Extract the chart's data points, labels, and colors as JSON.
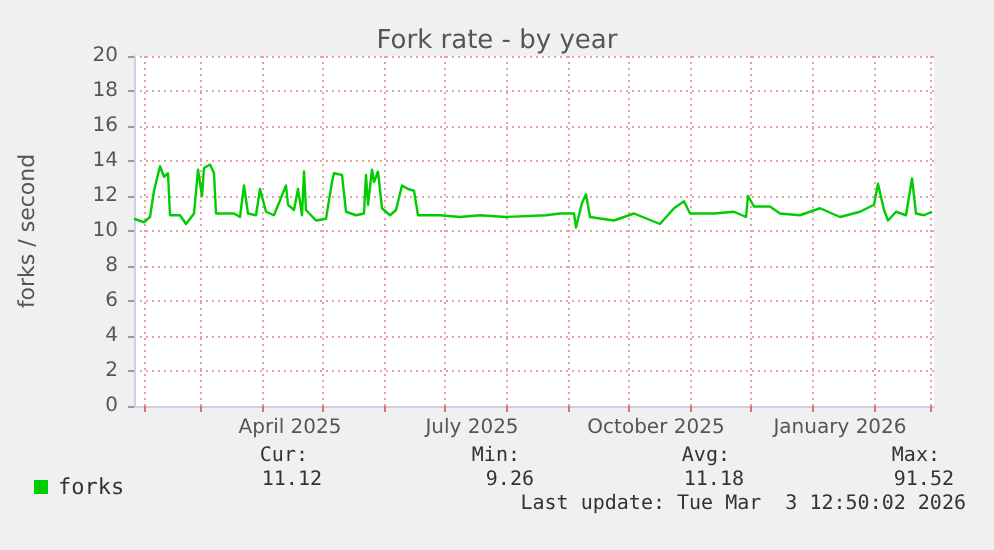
{
  "chart_data": {
    "type": "line",
    "title": "Fork rate - by year",
    "ylabel": "forks / second",
    "x": [
      "2025-01-27",
      "2025-02-01",
      "2025-02-04",
      "2025-02-06",
      "2025-02-09",
      "2025-02-11",
      "2025-02-13",
      "2025-02-14",
      "2025-02-19",
      "2025-02-22",
      "2025-02-26",
      "2025-02-28",
      "2025-03-02",
      "2025-03-03",
      "2025-03-06",
      "2025-03-08",
      "2025-03-09",
      "2025-03-18",
      "2025-03-21",
      "2025-03-23",
      "2025-03-25",
      "2025-03-29",
      "2025-03-31",
      "2025-04-03",
      "2025-04-07",
      "2025-04-13",
      "2025-04-14",
      "2025-04-17",
      "2025-04-19",
      "2025-04-21",
      "2025-04-22",
      "2025-04-23",
      "2025-04-28",
      "2025-05-03",
      "2025-05-06",
      "2025-05-07",
      "2025-05-11",
      "2025-05-13",
      "2025-05-18",
      "2025-05-22",
      "2025-05-23",
      "2025-05-24",
      "2025-05-26",
      "2025-05-27",
      "2025-05-29",
      "2025-05-31",
      "2025-06-04",
      "2025-06-07",
      "2025-06-10",
      "2025-06-13",
      "2025-06-16",
      "2025-06-18",
      "2025-06-29",
      "2025-07-09",
      "2025-07-19",
      "2025-08-01",
      "2025-08-21",
      "2025-08-28",
      "2025-09-04",
      "2025-09-05",
      "2025-09-08",
      "2025-09-10",
      "2025-09-12",
      "2025-09-24",
      "2025-10-04",
      "2025-10-17",
      "2025-10-24",
      "2025-10-29",
      "2025-11-01",
      "2025-11-13",
      "2025-11-23",
      "2025-11-29",
      "2025-11-30",
      "2025-12-03",
      "2025-12-11",
      "2025-12-16",
      "2025-12-26",
      "2026-01-05",
      "2026-01-15",
      "2026-01-25",
      "2026-02-01",
      "2026-02-03",
      "2026-02-06",
      "2026-02-08",
      "2026-02-12",
      "2026-02-17",
      "2026-02-20",
      "2026-02-22",
      "2026-02-26",
      "2026-03-02"
    ],
    "series": [
      {
        "name": "forks",
        "color": "#00cc00",
        "values": [
          10.7,
          10.5,
          10.8,
          12.3,
          13.7,
          13.1,
          13.3,
          10.9,
          10.9,
          10.4,
          11,
          13.5,
          12,
          13.6,
          13.8,
          13.3,
          11,
          11,
          10.8,
          12.6,
          11,
          10.9,
          12.4,
          11.1,
          10.9,
          12.6,
          11.5,
          11.2,
          12.4,
          10.9,
          13.4,
          11.2,
          10.6,
          10.7,
          12.8,
          13.3,
          13.2,
          11.1,
          10.9,
          11,
          13.2,
          11.5,
          13.5,
          12.8,
          13.4,
          11.3,
          10.9,
          11.2,
          12.6,
          12.4,
          12.3,
          10.9,
          10.9,
          10.8,
          10.9,
          10.8,
          10.9,
          11,
          11,
          10.2,
          11.6,
          12.1,
          10.8,
          10.6,
          11,
          10.4,
          11.3,
          11.7,
          11,
          11,
          11.1,
          10.8,
          12,
          11.4,
          11.4,
          11,
          10.9,
          11.3,
          10.8,
          11.1,
          11.5,
          12.7,
          11.2,
          10.6,
          11.1,
          10.9,
          13,
          11,
          10.9,
          11.1
        ]
      }
    ],
    "xlim": [
      "2025-01-27",
      "2026-03-03"
    ],
    "xticks": [
      {
        "value": "2025-02-01",
        "label": null
      },
      {
        "value": "2025-03-01",
        "label": null
      },
      {
        "value": "2025-04-01",
        "label": null
      },
      {
        "value": "2025-04-15",
        "label": "April 2025"
      },
      {
        "value": "2025-05-01",
        "label": null
      },
      {
        "value": "2025-06-01",
        "label": null
      },
      {
        "value": "2025-07-01",
        "label": null
      },
      {
        "value": "2025-07-15",
        "label": "July 2025"
      },
      {
        "value": "2025-08-01",
        "label": null
      },
      {
        "value": "2025-09-01",
        "label": null
      },
      {
        "value": "2025-10-01",
        "label": null
      },
      {
        "value": "2025-10-15",
        "label": "October 2025"
      },
      {
        "value": "2025-11-01",
        "label": null
      },
      {
        "value": "2025-12-01",
        "label": null
      },
      {
        "value": "2026-01-01",
        "label": null
      },
      {
        "value": "2026-01-15",
        "label": "January 2026"
      },
      {
        "value": "2026-02-01",
        "label": null
      },
      {
        "value": "2026-03-01",
        "label": null
      }
    ],
    "ylim": [
      0,
      20
    ],
    "yticks": [
      0,
      2,
      4,
      6,
      8,
      10,
      12,
      14,
      16,
      18,
      20
    ],
    "grid": true,
    "legend": "bottom left",
    "marker": "none",
    "annotations": [
      "Cur:",
      "Min:",
      "Avg:",
      "Max:",
      "11.12",
      "9.26",
      "11.18",
      "91.52",
      "Last update: Tue Mar  3 12:50:02 2026"
    ]
  }
}
